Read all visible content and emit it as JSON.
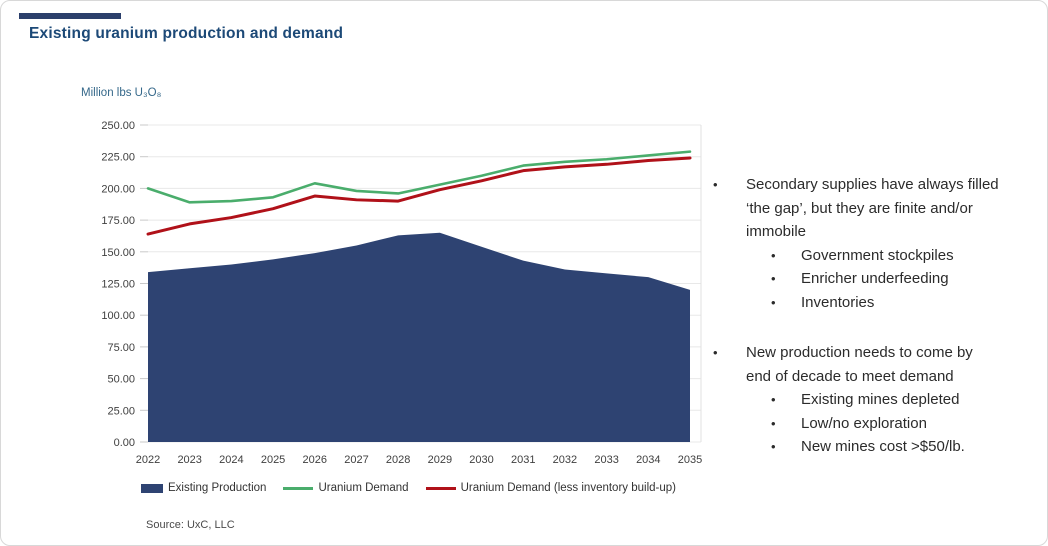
{
  "header": {
    "title": "Existing uranium production and demand"
  },
  "chart_data": {
    "type": "area-line-combo",
    "title": "Existing uranium production and demand",
    "ylabel": "Million lbs U₃O₈",
    "xlabel": "",
    "ylim": [
      0,
      250
    ],
    "ytick_step": 25,
    "y_tick_labels": [
      "0.00",
      "25.00",
      "50.00",
      "75.00",
      "100.00",
      "125.00",
      "150.00",
      "175.00",
      "200.00",
      "225.00",
      "250.00"
    ],
    "grid": true,
    "legend_position": "bottom",
    "categories": [
      "2022",
      "2023",
      "2024",
      "2025",
      "2026",
      "2027",
      "2028",
      "2029",
      "2030",
      "2031",
      "2032",
      "2033",
      "2034",
      "2035"
    ],
    "series": [
      {
        "name": "Existing Production",
        "type": "area",
        "color": "#2e4372",
        "values": [
          134,
          137,
          140,
          144,
          149,
          155,
          163,
          165,
          154,
          143,
          136,
          133,
          130,
          120
        ]
      },
      {
        "name": "Uranium Demand",
        "type": "line",
        "color": "#4aad6c",
        "values": [
          200,
          189,
          190,
          193,
          204,
          198,
          196,
          203,
          210,
          218,
          221,
          223,
          226,
          229
        ]
      },
      {
        "name": "Uranium Demand (less inventory build-up)",
        "type": "line",
        "color": "#b01119",
        "values": [
          164,
          172,
          177,
          184,
          194,
          191,
          190,
          199,
          206,
          214,
          217,
          219,
          222,
          224
        ]
      }
    ],
    "source": "Source: UxC, LLC"
  },
  "notes": [
    {
      "text": "Secondary supplies have always filled ‘the gap’, but they are finite and/or immobile",
      "subs": [
        "Government stockpiles",
        "Enricher underfeeding",
        "Inventories"
      ]
    },
    {
      "text": "New production needs to come by end of decade to meet demand",
      "subs": [
        "Existing mines depleted",
        "Low/no exploration",
        "New mines cost >$50/lb."
      ]
    }
  ]
}
